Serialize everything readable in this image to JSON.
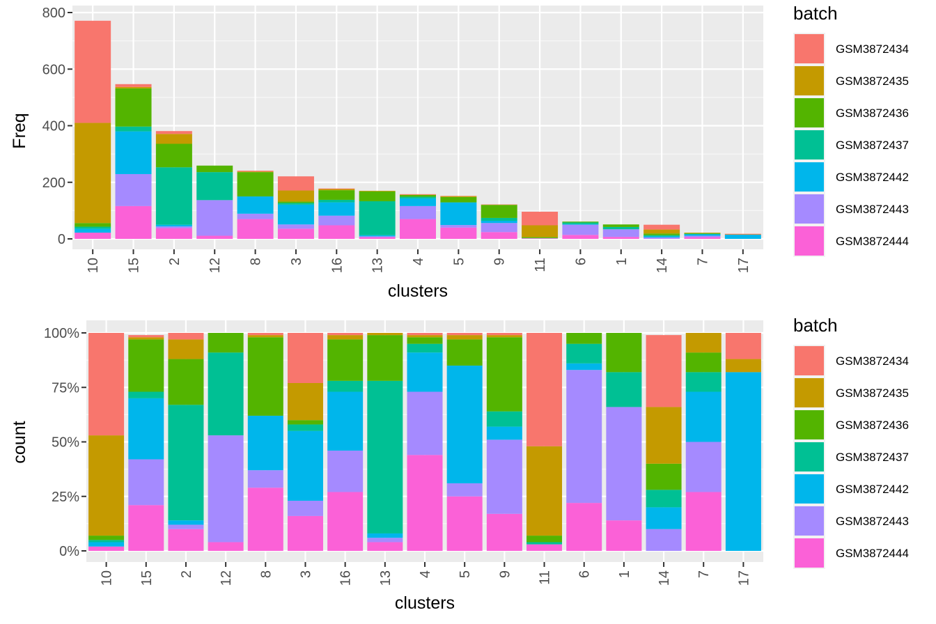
{
  "chart_data": [
    {
      "type": "bar",
      "stacked": true,
      "xlabel": "clusters",
      "ylabel": "Freq",
      "ylim": [
        0,
        800
      ],
      "yticks": [
        0,
        200,
        400,
        600,
        800
      ],
      "ytick_labels": [
        "0",
        "200",
        "400",
        "600",
        "800"
      ],
      "grid": true,
      "legend_title": "batch",
      "legend_position": "right",
      "categories": [
        "10",
        "15",
        "2",
        "12",
        "8",
        "3",
        "16",
        "13",
        "4",
        "5",
        "9",
        "11",
        "6",
        "1",
        "14",
        "7",
        "17"
      ],
      "series": [
        {
          "name": "GSM3872434",
          "color": "#F8766D",
          "values": [
            361,
            10,
            10,
            0,
            3,
            50,
            2,
            0,
            2,
            1,
            1,
            48,
            0,
            0,
            17,
            0,
            2
          ]
        },
        {
          "name": "GSM3872435",
          "color": "#C49A00",
          "values": [
            354,
            5,
            35,
            0,
            2,
            39,
            4,
            2,
            1,
            3,
            1,
            42,
            0,
            0,
            14,
            2,
            1
          ]
        },
        {
          "name": "GSM3872436",
          "color": "#53B400",
          "values": [
            13,
            135,
            83,
            23,
            86,
            5,
            34,
            35,
            6,
            19,
            46,
            3,
            3,
            9,
            6,
            2,
            0
          ]
        },
        {
          "name": "GSM3872437",
          "color": "#00C094",
          "values": [
            7,
            17,
            203,
            99,
            0,
            6,
            9,
            120,
            6,
            0,
            10,
            1,
            6,
            8,
            4,
            2,
            0
          ]
        },
        {
          "name": "GSM3872442",
          "color": "#00B6EB",
          "values": [
            14,
            151,
            6,
            0,
            61,
            70,
            47,
            4,
            27,
            80,
            8,
            0,
            2,
            0,
            4,
            5,
            15
          ]
        },
        {
          "name": "GSM3872443",
          "color": "#A58AFF",
          "values": [
            0,
            113,
            6,
            126,
            19,
            15,
            34,
            3,
            46,
            9,
            32,
            0,
            36,
            27,
            5,
            5,
            0
          ]
        },
        {
          "name": "GSM3872444",
          "color": "#FB61D7",
          "values": [
            22,
            116,
            38,
            11,
            70,
            36,
            48,
            6,
            70,
            40,
            24,
            2,
            14,
            7,
            0,
            6,
            0
          ]
        }
      ]
    },
    {
      "type": "bar",
      "stacked": true,
      "normalized": true,
      "xlabel": "clusters",
      "ylabel": "count",
      "ylim": [
        0,
        1
      ],
      "yticks": [
        0,
        0.25,
        0.5,
        0.75,
        1
      ],
      "ytick_labels": [
        "0%",
        "25%",
        "50%",
        "75%",
        "100%"
      ],
      "grid": true,
      "legend_title": "batch",
      "legend_position": "right",
      "categories": [
        "10",
        "15",
        "2",
        "12",
        "8",
        "3",
        "16",
        "13",
        "4",
        "5",
        "9",
        "11",
        "6",
        "1",
        "14",
        "7",
        "17"
      ],
      "series": [
        {
          "name": "GSM3872434",
          "color": "#F8766D",
          "values": [
            0.47,
            0.01,
            0.03,
            0,
            0.01,
            0.23,
            0.01,
            0,
            0.01,
            0.01,
            0.01,
            0.52,
            0,
            0,
            0.33,
            0,
            0.12
          ]
        },
        {
          "name": "GSM3872435",
          "color": "#C49A00",
          "values": [
            0.46,
            0.01,
            0.09,
            0,
            0.01,
            0.17,
            0.02,
            0.01,
            0.01,
            0.02,
            0.01,
            0.41,
            0,
            0,
            0.26,
            0.09,
            0.06
          ]
        },
        {
          "name": "GSM3872436",
          "color": "#53B400",
          "values": [
            0.02,
            0.24,
            0.21,
            0.09,
            0.36,
            0.02,
            0.19,
            0.21,
            0.03,
            0.12,
            0.34,
            0.03,
            0.05,
            0.18,
            0.12,
            0.09,
            0
          ]
        },
        {
          "name": "GSM3872437",
          "color": "#00C094",
          "values": [
            0.01,
            0.03,
            0.53,
            0.38,
            0,
            0.03,
            0.05,
            0.7,
            0.04,
            0,
            0.07,
            0.01,
            0.09,
            0.16,
            0.08,
            0.09,
            0
          ]
        },
        {
          "name": "GSM3872442",
          "color": "#00B6EB",
          "values": [
            0.02,
            0.28,
            0.02,
            0,
            0.25,
            0.32,
            0.27,
            0.02,
            0.18,
            0.54,
            0.06,
            0,
            0.03,
            0,
            0.1,
            0.23,
            0.82
          ]
        },
        {
          "name": "GSM3872443",
          "color": "#A58AFF",
          "values": [
            0,
            0.21,
            0.02,
            0.49,
            0.08,
            0.07,
            0.19,
            0.02,
            0.29,
            0.06,
            0.34,
            0,
            0.61,
            0.52,
            0.1,
            0.23,
            0
          ]
        },
        {
          "name": "GSM3872444",
          "color": "#FB61D7",
          "values": [
            0.02,
            0.21,
            0.1,
            0.04,
            0.29,
            0.16,
            0.27,
            0.04,
            0.44,
            0.25,
            0.17,
            0.03,
            0.22,
            0.14,
            0,
            0.27,
            0
          ]
        }
      ]
    }
  ]
}
